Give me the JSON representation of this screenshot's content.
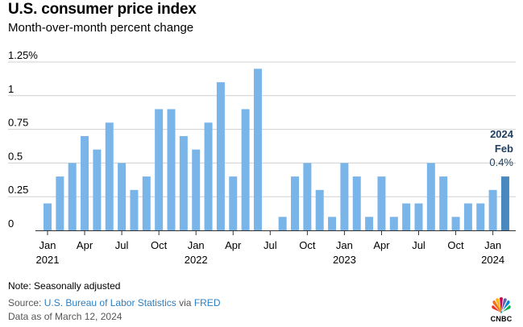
{
  "header": {
    "title": "U.S. consumer price index",
    "subtitle": "Month-over-month percent change"
  },
  "chart_data": {
    "type": "bar",
    "ylim": [
      0,
      1.25
    ],
    "y_ticks": [
      {
        "value": 1.25,
        "label": "1.25%"
      },
      {
        "value": 1.0,
        "label": "1"
      },
      {
        "value": 0.75,
        "label": "0.75"
      },
      {
        "value": 0.5,
        "label": "0.5"
      },
      {
        "value": 0.25,
        "label": "0.25"
      },
      {
        "value": 0,
        "label": "0"
      }
    ],
    "grid": true,
    "categories": [
      "2021-01",
      "2021-02",
      "2021-03",
      "2021-04",
      "2021-05",
      "2021-06",
      "2021-07",
      "2021-08",
      "2021-09",
      "2021-10",
      "2021-11",
      "2021-12",
      "2022-01",
      "2022-02",
      "2022-03",
      "2022-04",
      "2022-05",
      "2022-06",
      "2022-07",
      "2022-08",
      "2022-09",
      "2022-10",
      "2022-11",
      "2022-12",
      "2023-01",
      "2023-02",
      "2023-03",
      "2023-04",
      "2023-05",
      "2023-06",
      "2023-07",
      "2023-08",
      "2023-09",
      "2023-10",
      "2023-11",
      "2023-12",
      "2024-01",
      "2024-02"
    ],
    "values": [
      0.2,
      0.4,
      0.5,
      0.7,
      0.6,
      0.8,
      0.5,
      0.3,
      0.4,
      0.9,
      0.9,
      0.7,
      0.6,
      0.8,
      1.1,
      0.4,
      0.9,
      1.2,
      0.0,
      0.1,
      0.4,
      0.5,
      0.3,
      0.1,
      0.5,
      0.4,
      0.1,
      0.4,
      0.1,
      0.2,
      0.2,
      0.5,
      0.4,
      0.1,
      0.2,
      0.2,
      0.3,
      0.4
    ],
    "x_tick_labels": [
      {
        "index": 0,
        "month": "Jan",
        "year": "2021"
      },
      {
        "index": 3,
        "month": "Apr",
        "year": ""
      },
      {
        "index": 6,
        "month": "Jul",
        "year": ""
      },
      {
        "index": 9,
        "month": "Oct",
        "year": ""
      },
      {
        "index": 12,
        "month": "Jan",
        "year": "2022"
      },
      {
        "index": 15,
        "month": "Apr",
        "year": ""
      },
      {
        "index": 18,
        "month": "Jul",
        "year": ""
      },
      {
        "index": 21,
        "month": "Oct",
        "year": ""
      },
      {
        "index": 24,
        "month": "Jan",
        "year": "2023"
      },
      {
        "index": 27,
        "month": "Apr",
        "year": ""
      },
      {
        "index": 30,
        "month": "Jul",
        "year": ""
      },
      {
        "index": 33,
        "month": "Oct",
        "year": ""
      },
      {
        "index": 36,
        "month": "Jan",
        "year": "2024"
      }
    ],
    "annotation": {
      "year": "2024",
      "month": "Feb",
      "value": "0.4%"
    },
    "colors": {
      "bar": "#7ab5ea",
      "highlight_bar": "#4a88c0",
      "annotation": "#1f3f5f",
      "grid": "#d0d0d0",
      "axis": "#333333"
    }
  },
  "footer": {
    "note": "Note: Seasonally adjusted",
    "source_prefix": "Source: ",
    "source_link1": "U.S. Bureau of Labor Statistics",
    "source_mid": " via ",
    "source_link2": "FRED",
    "data_as_of": "Data as of March 12, 2024",
    "logo_text": "CNBC",
    "logo_icon": "peacock-icon"
  }
}
